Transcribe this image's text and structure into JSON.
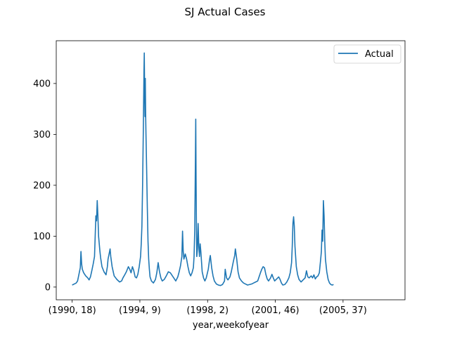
{
  "chart_data": {
    "type": "line",
    "title": "SJ Actual Cases",
    "xlabel": "year,weekofyear",
    "ylabel": "",
    "ylim": [
      -25,
      484
    ],
    "yticks": [
      0,
      100,
      200,
      300,
      400
    ],
    "x_tick_labels": [
      "(1990, 18)",
      "(1994, 9)",
      "(1998, 2)",
      "(2001, 46)",
      "(2005, 37)"
    ],
    "x_tick_positions": [
      0,
      200,
      400,
      600,
      800
    ],
    "xlim": [
      -47,
      983
    ],
    "legend": {
      "placement": "top-right",
      "entries": [
        "Actual"
      ]
    },
    "grid": false,
    "series": [
      {
        "name": "Actual",
        "color": "#1f77b4",
        "points": [
          [
            0,
            4
          ],
          [
            6,
            6
          ],
          [
            12,
            8
          ],
          [
            16,
            12
          ],
          [
            20,
            25
          ],
          [
            24,
            38
          ],
          [
            26,
            70
          ],
          [
            28,
            45
          ],
          [
            30,
            35
          ],
          [
            34,
            28
          ],
          [
            40,
            22
          ],
          [
            46,
            18
          ],
          [
            50,
            14
          ],
          [
            54,
            20
          ],
          [
            58,
            32
          ],
          [
            62,
            45
          ],
          [
            66,
            60
          ],
          [
            68,
            100
          ],
          [
            70,
            140
          ],
          [
            72,
            130
          ],
          [
            74,
            170
          ],
          [
            76,
            140
          ],
          [
            78,
            100
          ],
          [
            80,
            85
          ],
          [
            82,
            70
          ],
          [
            84,
            58
          ],
          [
            88,
            40
          ],
          [
            94,
            30
          ],
          [
            100,
            24
          ],
          [
            104,
            40
          ],
          [
            106,
            55
          ],
          [
            110,
            68
          ],
          [
            112,
            75
          ],
          [
            114,
            60
          ],
          [
            118,
            40
          ],
          [
            124,
            22
          ],
          [
            132,
            15
          ],
          [
            140,
            10
          ],
          [
            146,
            12
          ],
          [
            150,
            18
          ],
          [
            156,
            25
          ],
          [
            160,
            30
          ],
          [
            166,
            40
          ],
          [
            170,
            35
          ],
          [
            174,
            28
          ],
          [
            178,
            40
          ],
          [
            182,
            32
          ],
          [
            186,
            20
          ],
          [
            190,
            18
          ],
          [
            194,
            25
          ],
          [
            198,
            40
          ],
          [
            202,
            60
          ],
          [
            204,
            85
          ],
          [
            206,
            120
          ],
          [
            208,
            200
          ],
          [
            210,
            300
          ],
          [
            212,
            420
          ],
          [
            213,
            460
          ],
          [
            214,
            380
          ],
          [
            215,
            335
          ],
          [
            216,
            410
          ],
          [
            217,
            340
          ],
          [
            218,
            300
          ],
          [
            220,
            230
          ],
          [
            222,
            155
          ],
          [
            224,
            90
          ],
          [
            226,
            55
          ],
          [
            228,
            35
          ],
          [
            230,
            20
          ],
          [
            234,
            12
          ],
          [
            240,
            8
          ],
          [
            246,
            15
          ],
          [
            250,
            28
          ],
          [
            254,
            48
          ],
          [
            258,
            30
          ],
          [
            262,
            18
          ],
          [
            266,
            12
          ],
          [
            272,
            15
          ],
          [
            278,
            22
          ],
          [
            284,
            30
          ],
          [
            290,
            28
          ],
          [
            296,
            22
          ],
          [
            300,
            18
          ],
          [
            306,
            12
          ],
          [
            312,
            20
          ],
          [
            316,
            30
          ],
          [
            320,
            42
          ],
          [
            324,
            60
          ],
          [
            326,
            110
          ],
          [
            328,
            70
          ],
          [
            330,
            55
          ],
          [
            334,
            65
          ],
          [
            338,
            55
          ],
          [
            342,
            40
          ],
          [
            346,
            28
          ],
          [
            350,
            22
          ],
          [
            354,
            28
          ],
          [
            358,
            38
          ],
          [
            360,
            60
          ],
          [
            362,
            110
          ],
          [
            364,
            250
          ],
          [
            365,
            330
          ],
          [
            366,
            210
          ],
          [
            367,
            120
          ],
          [
            368,
            60
          ],
          [
            370,
            75
          ],
          [
            372,
            125
          ],
          [
            374,
            80
          ],
          [
            376,
            60
          ],
          [
            378,
            85
          ],
          [
            380,
            70
          ],
          [
            382,
            50
          ],
          [
            384,
            30
          ],
          [
            388,
            18
          ],
          [
            392,
            12
          ],
          [
            396,
            18
          ],
          [
            402,
            35
          ],
          [
            406,
            55
          ],
          [
            408,
            62
          ],
          [
            412,
            38
          ],
          [
            416,
            22
          ],
          [
            420,
            12
          ],
          [
            426,
            6
          ],
          [
            432,
            4
          ],
          [
            438,
            3
          ],
          [
            444,
            5
          ],
          [
            450,
            12
          ],
          [
            452,
            35
          ],
          [
            456,
            18
          ],
          [
            460,
            14
          ],
          [
            466,
            20
          ],
          [
            470,
            30
          ],
          [
            476,
            50
          ],
          [
            480,
            62
          ],
          [
            482,
            75
          ],
          [
            486,
            55
          ],
          [
            490,
            30
          ],
          [
            494,
            18
          ],
          [
            500,
            12
          ],
          [
            506,
            8
          ],
          [
            512,
            6
          ],
          [
            518,
            4
          ],
          [
            524,
            5
          ],
          [
            530,
            6
          ],
          [
            536,
            8
          ],
          [
            542,
            10
          ],
          [
            548,
            12
          ],
          [
            552,
            20
          ],
          [
            556,
            28
          ],
          [
            560,
            35
          ],
          [
            564,
            40
          ],
          [
            568,
            38
          ],
          [
            572,
            25
          ],
          [
            576,
            16
          ],
          [
            580,
            12
          ],
          [
            586,
            18
          ],
          [
            590,
            25
          ],
          [
            594,
            18
          ],
          [
            598,
            12
          ],
          [
            604,
            16
          ],
          [
            610,
            20
          ],
          [
            614,
            15
          ],
          [
            618,
            8
          ],
          [
            622,
            4
          ],
          [
            628,
            5
          ],
          [
            634,
            10
          ],
          [
            640,
            18
          ],
          [
            644,
            28
          ],
          [
            648,
            48
          ],
          [
            650,
            80
          ],
          [
            652,
            125
          ],
          [
            654,
            138
          ],
          [
            656,
            120
          ],
          [
            658,
            80
          ],
          [
            662,
            40
          ],
          [
            666,
            24
          ],
          [
            670,
            15
          ],
          [
            676,
            10
          ],
          [
            682,
            14
          ],
          [
            688,
            18
          ],
          [
            692,
            32
          ],
          [
            696,
            20
          ],
          [
            700,
            18
          ],
          [
            706,
            22
          ],
          [
            710,
            18
          ],
          [
            714,
            24
          ],
          [
            718,
            16
          ],
          [
            722,
            20
          ],
          [
            726,
            22
          ],
          [
            730,
            28
          ],
          [
            734,
            55
          ],
          [
            736,
            70
          ],
          [
            738,
            112
          ],
          [
            740,
            90
          ],
          [
            742,
            170
          ],
          [
            744,
            140
          ],
          [
            746,
            90
          ],
          [
            748,
            55
          ],
          [
            752,
            30
          ],
          [
            756,
            15
          ],
          [
            760,
            8
          ],
          [
            764,
            5
          ],
          [
            768,
            4
          ],
          [
            772,
            5
          ]
        ]
      }
    ]
  }
}
